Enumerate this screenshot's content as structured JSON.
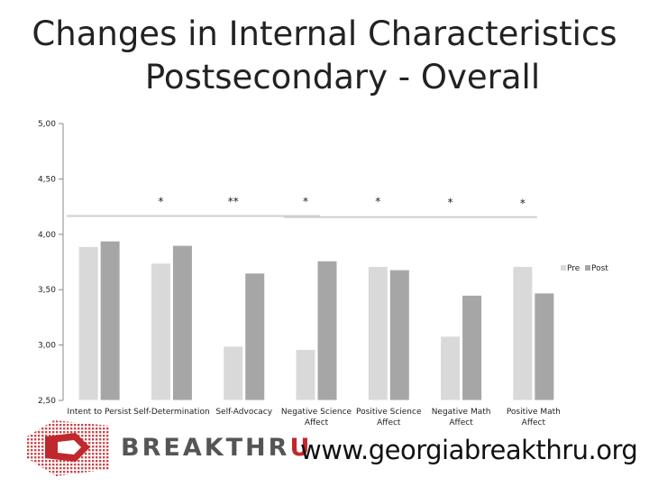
{
  "title_line1": "Changes in Internal Characteristics",
  "title_line2": "Postsecondary - Overall",
  "chart_data": {
    "type": "bar",
    "categories": [
      [
        "Intent to Persist"
      ],
      [
        "Self-Determination"
      ],
      [
        "Self-Advocacy"
      ],
      [
        "Negative Science",
        "Affect"
      ],
      [
        "Positive Science",
        "Affect"
      ],
      [
        "Negative Math",
        "Affect"
      ],
      [
        "Positive Math",
        "Affect"
      ]
    ],
    "series": [
      {
        "name": "Pre",
        "color": "#d9d9d9",
        "values": [
          3.89,
          3.74,
          2.99,
          2.96,
          3.71,
          3.08,
          3.71
        ]
      },
      {
        "name": "Post",
        "color": "#a6a6a6",
        "values": [
          3.94,
          3.9,
          3.65,
          3.76,
          3.68,
          3.45,
          3.47
        ]
      }
    ],
    "yticks": [
      "2,50",
      "3,00",
      "3,50",
      "4,00",
      "4,50",
      "5,00"
    ],
    "ylim": [
      2.5,
      5.0
    ],
    "significance": [
      {
        "category_index": 1,
        "mark": "*",
        "value": 4.33
      },
      {
        "category_index": 2,
        "mark": "**",
        "value": 4.33
      },
      {
        "category_index": 3,
        "mark": "*",
        "value": 4.33
      },
      {
        "category_index": 4,
        "mark": "*",
        "value": 4.33
      },
      {
        "category_index": 5,
        "mark": "*",
        "value": 4.32
      },
      {
        "category_index": 6,
        "mark": "*",
        "value": 4.31
      }
    ],
    "reference_lines": [
      {
        "from_category": 0,
        "to_category": 3,
        "value": 4.165
      },
      {
        "from_category": 3,
        "to_category": 6,
        "value": 4.155
      }
    ],
    "legend_position": "right",
    "grid": false
  },
  "logo": {
    "brand_main": "BREAKTHR",
    "brand_accent": "U",
    "icon": "breakthru-logo-icon"
  },
  "website": "www.georgiabreakthru.org"
}
